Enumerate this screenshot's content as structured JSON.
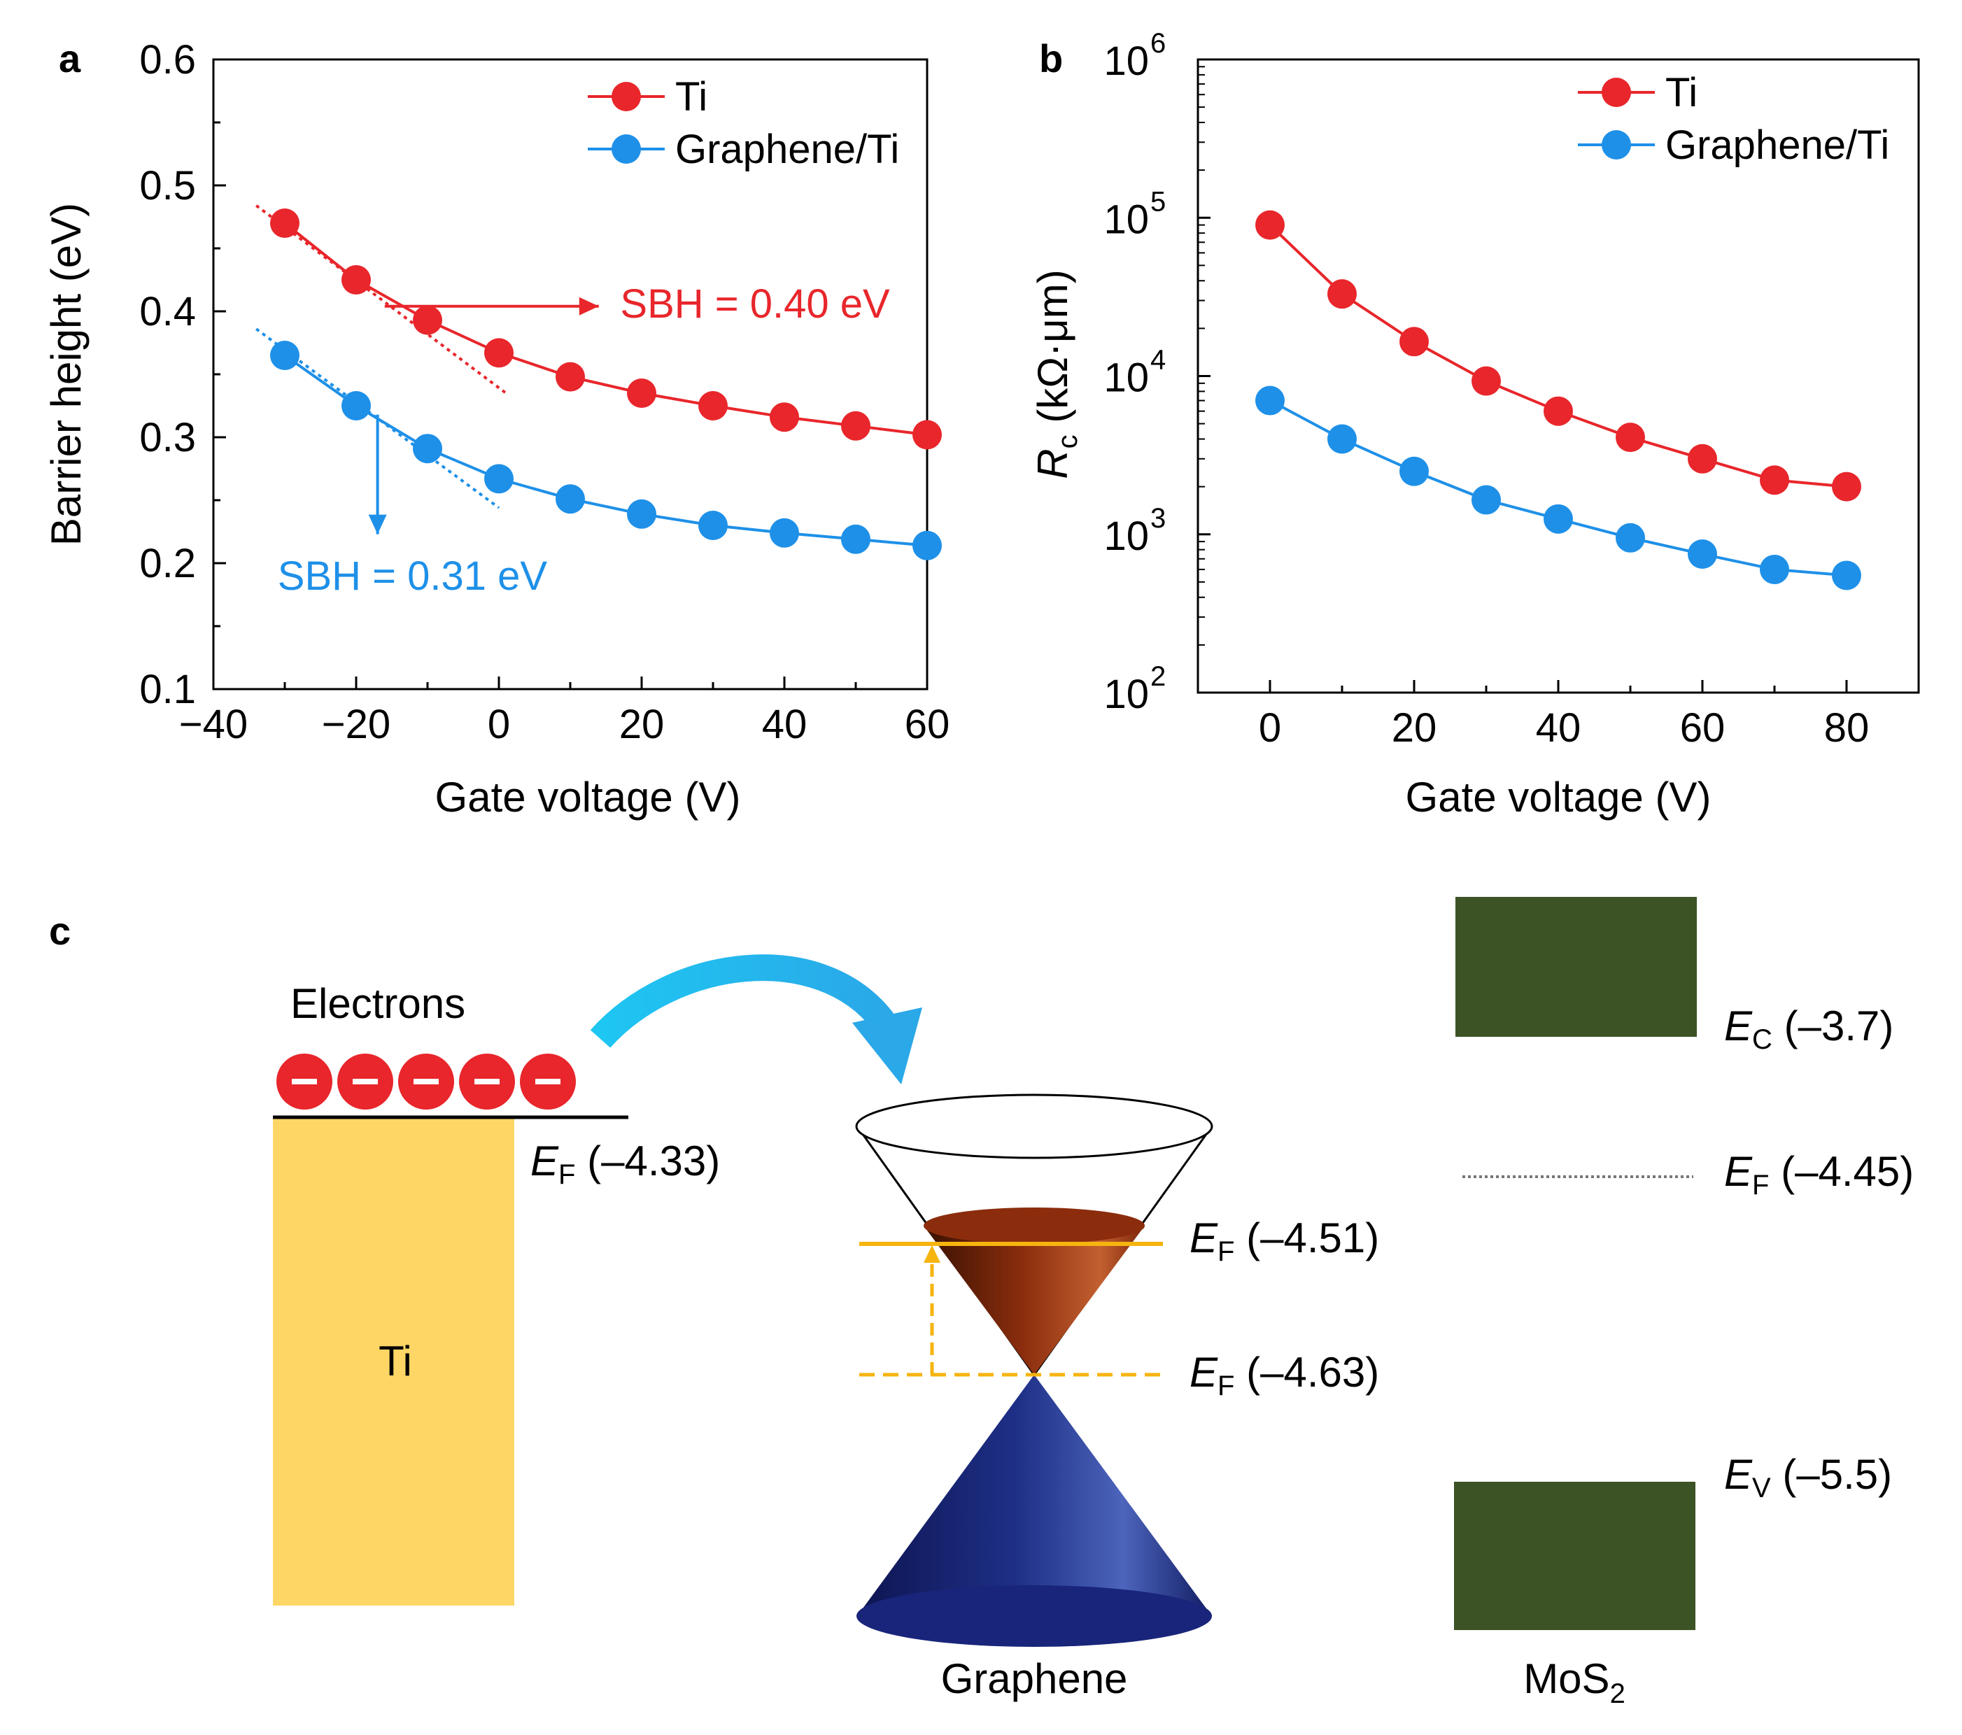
{
  "panels": {
    "a": "a",
    "b": "b",
    "c": "c"
  },
  "colors": {
    "ti": "#e8262b",
    "graphene_ti": "#1e90e8",
    "ti_metal": "#fdd666",
    "mos2_band": "#3c5325",
    "graphene_upper_cone": "#8b2d0d",
    "graphene_lower_cone": "#1e2f86",
    "fermi_line": "#f6b40f",
    "arrow": "#26b5ec"
  },
  "chart_data": [
    {
      "id": "a",
      "type": "line",
      "xlabel": "Gate voltage",
      "xlabel_unit": "(V)",
      "ylabel": "Barrier height",
      "ylabel_unit": "(eV)",
      "xlim": [
        -40,
        60
      ],
      "ylim": [
        0.1,
        0.6
      ],
      "xticks": [
        -40,
        -20,
        0,
        20,
        40,
        60
      ],
      "xtick_labels": [
        "−40",
        "−20",
        "0",
        "20",
        "40",
        "60"
      ],
      "yticks": [
        0.1,
        0.2,
        0.3,
        0.4,
        0.5,
        0.6
      ],
      "ytick_labels": [
        "0.1",
        "0.2",
        "0.3",
        "0.4",
        "0.5",
        "0.6"
      ],
      "legend_position": "top-right",
      "series": [
        {
          "name": "Ti",
          "color": "#e8262b",
          "x": [
            -30,
            -20,
            -10,
            0,
            10,
            20,
            30,
            40,
            50,
            60
          ],
          "y": [
            0.47,
            0.425,
            0.393,
            0.367,
            0.348,
            0.335,
            0.325,
            0.316,
            0.309,
            0.302
          ]
        },
        {
          "name": "Graphene/Ti",
          "color": "#1e90e8",
          "x": [
            -30,
            -20,
            -10,
            0,
            10,
            20,
            30,
            40,
            50,
            60
          ],
          "y": [
            0.365,
            0.325,
            0.291,
            0.267,
            0.251,
            0.239,
            0.23,
            0.224,
            0.219,
            0.214
          ]
        }
      ],
      "fit_lines": [
        {
          "series": "Ti",
          "color": "#e8262b",
          "x": [
            -34,
            1
          ],
          "y": [
            0.484,
            0.335
          ]
        },
        {
          "series": "Graphene/Ti",
          "color": "#1e90e8",
          "x": [
            -34,
            0
          ],
          "y": [
            0.386,
            0.244
          ]
        }
      ],
      "annotations": [
        {
          "text": "SBH = 0.40 eV",
          "color": "#e8262b",
          "arrow_from": [
            -16,
            0.404
          ],
          "arrow_to": [
            14,
            0.404
          ],
          "text_at": [
            17,
            0.406
          ]
        },
        {
          "text": "SBH = 0.31 eV",
          "color": "#1e90e8",
          "arrow_from": [
            -17,
            0.318
          ],
          "arrow_to": [
            -17,
            0.223
          ],
          "text_at": [
            -31,
            0.19
          ]
        }
      ]
    },
    {
      "id": "b",
      "type": "line",
      "yscale": "log",
      "xlabel": "Gate voltage",
      "xlabel_unit": "(V)",
      "ylabel_symbol": "R",
      "ylabel_subscript": "c",
      "ylabel_unit": "(kΩ·μm)",
      "xlim": [
        -10,
        90
      ],
      "ylim": [
        100,
        1000000
      ],
      "xticks": [
        0,
        20,
        40,
        60,
        80
      ],
      "xtick_labels": [
        "0",
        "20",
        "40",
        "60",
        "80"
      ],
      "yticks": [
        100,
        1000,
        10000,
        100000,
        1000000
      ],
      "ytick_base": "10",
      "ytick_exponents": [
        "2",
        "3",
        "4",
        "5",
        "6"
      ],
      "legend_position": "top-right",
      "series": [
        {
          "name": "Ti",
          "color": "#e8262b",
          "x": [
            0,
            10,
            20,
            30,
            40,
            50,
            60,
            70,
            80
          ],
          "y": [
            90000,
            33000,
            16500,
            9300,
            6000,
            4100,
            3000,
            2200,
            2000
          ]
        },
        {
          "name": "Graphene/Ti",
          "color": "#1e90e8",
          "x": [
            0,
            10,
            20,
            30,
            40,
            50,
            60,
            70,
            80
          ],
          "y": [
            7000,
            4000,
            2500,
            1650,
            1250,
            950,
            750,
            600,
            550
          ]
        }
      ]
    }
  ],
  "diagram": {
    "electrons_label": "Electrons",
    "electron_symbol": "−",
    "electron_count": 5,
    "ti_label": "Ti",
    "graphene_label": "Graphene",
    "mos2_label": "MoS",
    "mos2_subscript": "2",
    "levels": [
      {
        "id": "ti_ef",
        "symbol": "E",
        "sub": "F",
        "value": "(–4.33)"
      },
      {
        "id": "gr_ef_high",
        "symbol": "E",
        "sub": "F",
        "value": "(–4.51)"
      },
      {
        "id": "gr_ef_low",
        "symbol": "E",
        "sub": "F",
        "value": "(–4.63)"
      },
      {
        "id": "mos2_ec",
        "symbol": "E",
        "sub": "C",
        "value": "(–3.7)"
      },
      {
        "id": "mos2_ef",
        "symbol": "E",
        "sub": "F",
        "value": "(–4.45)"
      },
      {
        "id": "mos2_ev",
        "symbol": "E",
        "sub": "V",
        "value": "(–5.5)"
      }
    ]
  }
}
